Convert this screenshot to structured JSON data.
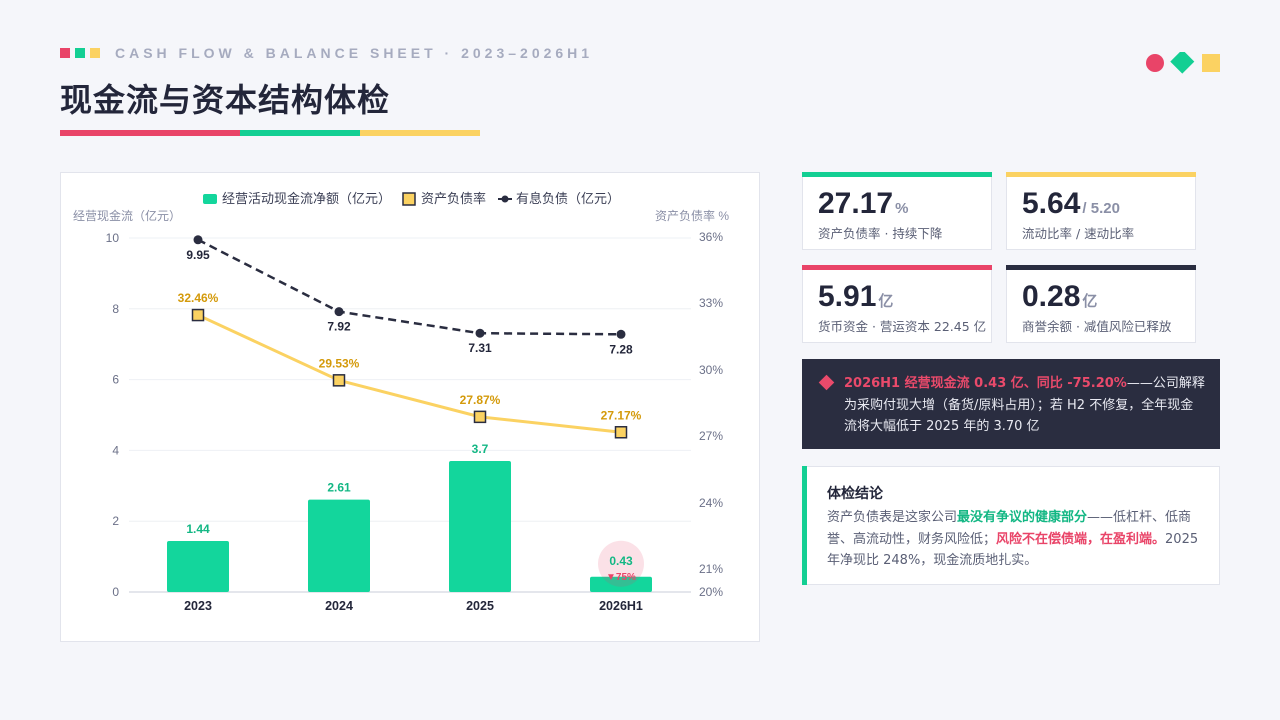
{
  "header": {
    "eyebrow": "CASH FLOW & BALANCE SHEET · 2023–2026H1",
    "title": "现金流与资本结构体检",
    "accent_colors": [
      "#e94468",
      "#13cf93",
      "#fbd262"
    ]
  },
  "chart_data": {
    "type": "bar+line",
    "categories": [
      "2023",
      "2024",
      "2025",
      "2026H1"
    ],
    "legend": [
      "经营活动现金流净额（亿元）",
      "资产负债率",
      "有息负债（亿元）"
    ],
    "y_left_label": "经营现金流（亿元）",
    "y_right_label": "资产负债率 %",
    "y_left_ticks": [
      "0",
      "2",
      "4",
      "6",
      "8",
      "10"
    ],
    "y_right_ticks": [
      "20%",
      "21%",
      "24%",
      "27%",
      "30%",
      "33%",
      "36%"
    ],
    "ylim_left": [
      0,
      10
    ],
    "series": [
      {
        "name": "经营活动现金流净额（亿元）",
        "type": "bar",
        "values": [
          1.44,
          2.61,
          3.7,
          0.43
        ],
        "labels": [
          "1.44",
          "2.61",
          "3.7",
          "0.43"
        ],
        "color": "#13d69c"
      },
      {
        "name": "资产负债率",
        "type": "line",
        "values": [
          32.46,
          29.53,
          27.87,
          27.17
        ],
        "labels": [
          "32.46%",
          "29.53%",
          "27.87%",
          "27.17%"
        ],
        "color": "#fbd262"
      },
      {
        "name": "有息负债（亿元）",
        "type": "line",
        "values": [
          9.95,
          7.92,
          7.31,
          7.28
        ],
        "labels": [
          "9.95",
          "7.92",
          "7.31",
          "7.28"
        ],
        "color": "#2a2d40"
      }
    ],
    "annotation": "▼75%"
  },
  "kpis": [
    {
      "value": "27.17",
      "unit": "%",
      "caption": "资产负债率 · 持续下降",
      "color": "#13cf93"
    },
    {
      "value": "5.64",
      "unit": "/ 5.20",
      "caption": "流动比率 / 速动比率",
      "color": "#fbd262"
    },
    {
      "value": "5.91",
      "unit": "亿",
      "caption": "货币资金 · 营运资本 22.45 亿",
      "color": "#e94468"
    },
    {
      "value": "0.28",
      "unit": "亿",
      "caption": "商誉余额 · 减值风险已释放",
      "color": "#2a2d40"
    }
  ],
  "alert": {
    "highlight": "2026H1 经营现金流 0.43 亿、同比 -75.20%",
    "text": "——公司解释为采购付现大增（备货/原料占用）；若 H2 不修复，全年现金流将大幅低于 2025 年的 3.70 亿"
  },
  "conclusion": {
    "heading": "体检结论",
    "p1": "资产负债表是这家公司",
    "p1_green": "最没有争议的健康部分",
    "p2": "——低杠杆、低商誉、高流动性，财务风险低；",
    "p2_red": "风险不在偿债端，在盈利端。",
    "p3": "2025 年净现比 248%，现金流质地扎实。"
  }
}
